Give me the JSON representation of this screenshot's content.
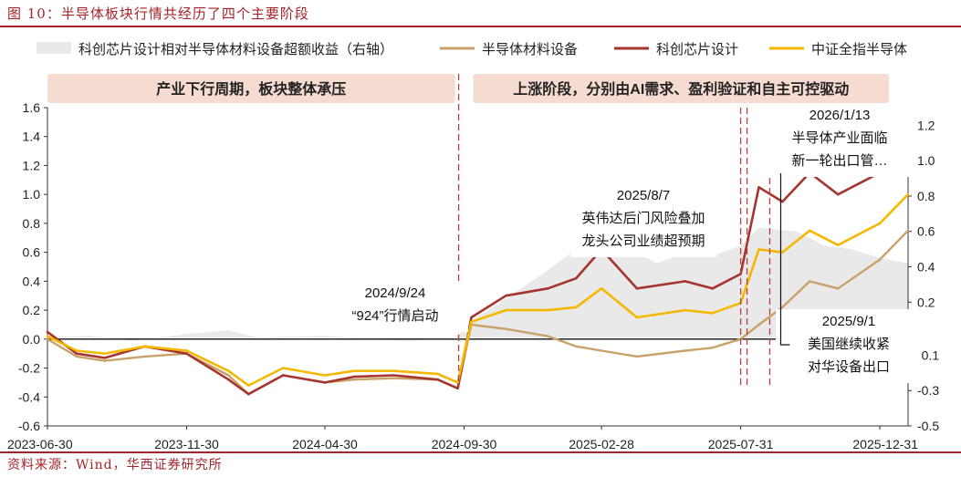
{
  "figure_title": "图 10：半导体板块行情共经历了四个主要阶段",
  "source": "资料来源：Wind，华西证券研究所",
  "chart_data": {
    "type": "line",
    "x_ticks": [
      "2023-06-30",
      "2023-11-30",
      "2024-04-30",
      "2024-09-30",
      "2025-02-28",
      "2025-07-31",
      "2025-12-31"
    ],
    "x_range": [
      "2023-06-30",
      "2026-01-31"
    ],
    "y_left": {
      "ticks": [
        "1.6",
        "1.4",
        "1.2",
        "1.0",
        "0.8",
        "0.6",
        "0.4",
        "0.2",
        "0.0",
        "-0.2",
        "-0.4",
        "-0.6"
      ],
      "range": [
        -0.6,
        1.6
      ]
    },
    "y_right": {
      "ticks": [
        "1.2",
        "1.0",
        "0.8",
        "0.6",
        "0.4",
        "0.2",
        "-0.1",
        "-0.3",
        "-0.5"
      ],
      "range": [
        -0.5,
        1.3
      ]
    },
    "legend": [
      {
        "name": "科创芯片设计相对半导体材料设备超额收益（右轴）",
        "color": "#e9e9e9",
        "kind": "area"
      },
      {
        "name": "半导体材料设备",
        "color": "#c9a26a",
        "kind": "line"
      },
      {
        "name": "科创芯片设计",
        "color": "#a5352f",
        "kind": "line"
      },
      {
        "name": "中证全指半导体",
        "color": "#f5b800",
        "kind": "line"
      }
    ],
    "phase_boxes": [
      {
        "label": "产业下行周期，板块整体承压",
        "from": "2023-06-30",
        "to": "2024-09-20"
      },
      {
        "label": "上涨阶段，分别由AI需求、盈利验证和自主可控驱动",
        "from": "2024-10-10",
        "to": "2026-01-10"
      }
    ],
    "markers": [
      "2024-09-24",
      "2025-07-31",
      "2025-08-07",
      "2025-09-01"
    ],
    "annotations": [
      {
        "lines": [
          "2024/9/24",
          "“924”行情启动"
        ]
      },
      {
        "lines": [
          "2025/8/7",
          "英伟达后门风险叠加",
          "龙头公司业绩超预期"
        ]
      },
      {
        "lines": [
          "2026/1/13",
          "半导体产业面临",
          "新一轮出口管…"
        ]
      },
      {
        "lines": [
          "2025/9/1",
          "美国继续收紧",
          "对华设备出口"
        ]
      }
    ],
    "series": [
      {
        "name": "科创芯片设计相对半导体材料设备超额收益（右轴）",
        "axis": "right",
        "x": [
          "2023-06-30",
          "2023-08-15",
          "2023-10-01",
          "2023-11-30",
          "2024-01-15",
          "2024-02-15",
          "2024-04-30",
          "2024-06-15",
          "2024-08-01",
          "2024-09-20",
          "2024-10-15",
          "2024-11-15",
          "2024-12-31",
          "2025-01-31",
          "2025-02-28",
          "2025-03-31",
          "2025-04-30",
          "2025-05-31",
          "2025-06-30",
          "2025-07-31",
          "2025-08-20",
          "2025-09-30",
          "2025-10-31",
          "2025-11-30",
          "2025-12-31",
          "2026-01-31"
        ],
        "values": [
          0.0,
          0.01,
          -0.02,
          0.02,
          0.04,
          0.0,
          0.01,
          -0.01,
          -0.02,
          0.0,
          0.12,
          0.22,
          0.38,
          0.5,
          0.55,
          0.5,
          0.42,
          0.48,
          0.46,
          0.52,
          0.62,
          0.6,
          0.52,
          0.5,
          0.45,
          0.42
        ]
      },
      {
        "name": "半导体材料设备",
        "axis": "left",
        "x": [
          "2023-06-30",
          "2023-08-01",
          "2023-09-01",
          "2023-10-15",
          "2023-11-30",
          "2024-01-15",
          "2024-02-06",
          "2024-03-15",
          "2024-04-30",
          "2024-06-01",
          "2024-07-15",
          "2024-09-01",
          "2024-09-23",
          "2024-10-08",
          "2024-11-15",
          "2024-12-31",
          "2025-01-31",
          "2025-02-28",
          "2025-04-08",
          "2025-05-31",
          "2025-06-30",
          "2025-07-31",
          "2025-08-20",
          "2025-09-15",
          "2025-10-15",
          "2025-11-15",
          "2025-12-31",
          "2026-01-31"
        ],
        "values": [
          0.0,
          -0.12,
          -0.15,
          -0.12,
          -0.1,
          -0.25,
          -0.38,
          -0.25,
          -0.3,
          -0.28,
          -0.27,
          -0.28,
          -0.34,
          0.1,
          0.07,
          0.02,
          -0.05,
          -0.08,
          -0.12,
          -0.08,
          -0.06,
          0.0,
          0.1,
          0.22,
          0.4,
          0.35,
          0.55,
          0.75
        ]
      },
      {
        "name": "科创芯片设计",
        "axis": "left",
        "x": [
          "2023-06-30",
          "2023-08-01",
          "2023-09-01",
          "2023-10-15",
          "2023-11-30",
          "2024-01-15",
          "2024-02-06",
          "2024-03-15",
          "2024-04-30",
          "2024-06-01",
          "2024-07-15",
          "2024-09-01",
          "2024-09-23",
          "2024-10-08",
          "2024-11-15",
          "2024-12-31",
          "2025-01-31",
          "2025-02-28",
          "2025-04-08",
          "2025-05-31",
          "2025-06-30",
          "2025-07-31",
          "2025-08-20",
          "2025-09-15",
          "2025-10-15",
          "2025-11-15",
          "2025-12-31",
          "2026-01-31"
        ],
        "values": [
          0.05,
          -0.1,
          -0.13,
          -0.05,
          -0.1,
          -0.28,
          -0.38,
          -0.25,
          -0.3,
          -0.26,
          -0.25,
          -0.28,
          -0.34,
          0.15,
          0.3,
          0.35,
          0.42,
          0.62,
          0.35,
          0.4,
          0.35,
          0.45,
          1.05,
          0.95,
          1.15,
          1.0,
          1.15,
          1.5
        ]
      },
      {
        "name": "中证全指半导体",
        "axis": "left",
        "x": [
          "2023-06-30",
          "2023-08-01",
          "2023-09-01",
          "2023-10-15",
          "2023-11-30",
          "2024-01-15",
          "2024-02-06",
          "2024-03-15",
          "2024-04-30",
          "2024-06-01",
          "2024-07-15",
          "2024-09-01",
          "2024-09-23",
          "2024-10-08",
          "2024-11-15",
          "2024-12-31",
          "2025-01-31",
          "2025-02-28",
          "2025-04-08",
          "2025-05-31",
          "2025-06-30",
          "2025-07-31",
          "2025-08-20",
          "2025-09-15",
          "2025-10-15",
          "2025-11-15",
          "2025-12-31",
          "2026-01-31"
        ],
        "values": [
          0.02,
          -0.08,
          -0.1,
          -0.05,
          -0.08,
          -0.22,
          -0.32,
          -0.2,
          -0.25,
          -0.22,
          -0.22,
          -0.24,
          -0.3,
          0.12,
          0.2,
          0.2,
          0.22,
          0.35,
          0.15,
          0.2,
          0.18,
          0.25,
          0.62,
          0.6,
          0.75,
          0.65,
          0.8,
          1.0
        ]
      }
    ]
  }
}
